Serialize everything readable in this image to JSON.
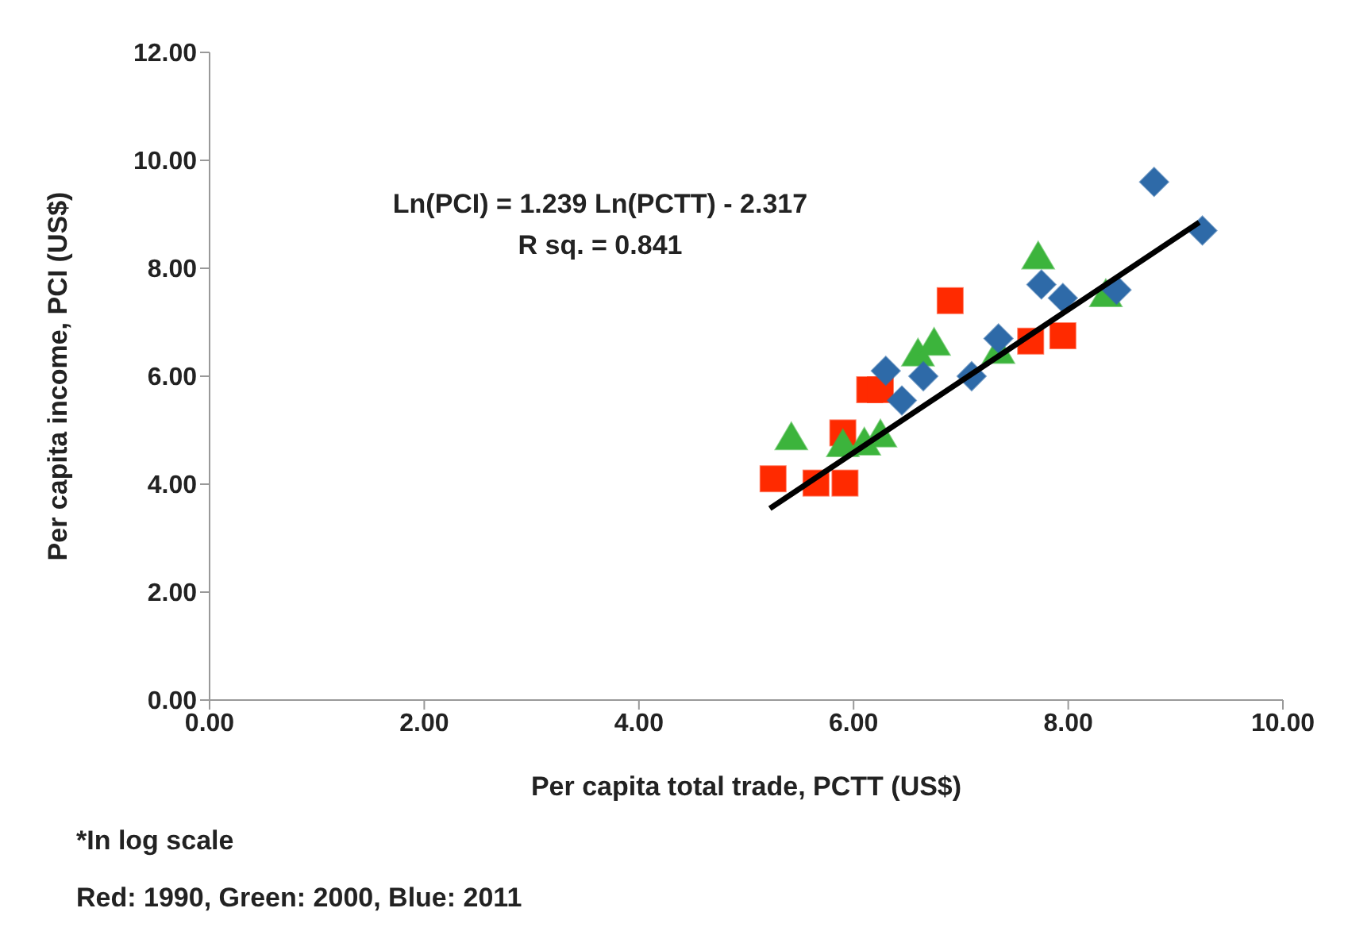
{
  "chart_data": {
    "type": "scatter",
    "xlabel": "Per capita total trade, PCTT (US$)",
    "ylabel": "Per capita income, PCI (US$)",
    "annotations": [
      "Ln(PCI) = 1.239 Ln(PCTT) - 2.317\nR sq. = 0.841",
      "*In log scale",
      "Red: 1990, Green: 2000, Blue: 2011"
    ],
    "xlim": [
      0,
      10
    ],
    "ylim": [
      0,
      12
    ],
    "xticks": [
      {
        "value": 0,
        "label": "0.00"
      },
      {
        "value": 2,
        "label": "2.00"
      },
      {
        "value": 4,
        "label": "4.00"
      },
      {
        "value": 6,
        "label": "6.00"
      },
      {
        "value": 8,
        "label": "8.00"
      },
      {
        "value": 10,
        "label": "10.00"
      }
    ],
    "yticks": [
      {
        "value": 0,
        "label": "0.00"
      },
      {
        "value": 2,
        "label": "2.00"
      },
      {
        "value": 4,
        "label": "4.00"
      },
      {
        "value": 6,
        "label": "6.00"
      },
      {
        "value": 8,
        "label": "8.00"
      },
      {
        "value": 10,
        "label": "10.00"
      },
      {
        "value": 12,
        "label": "12.00"
      }
    ],
    "grid": false,
    "legend": false,
    "series": [
      {
        "marker": "square",
        "color": "#ff2a00",
        "x": [
          5.25,
          5.65,
          5.92,
          5.9,
          6.15,
          6.25,
          6.9,
          7.65,
          7.95
        ],
        "values": [
          4.1,
          4.02,
          4.02,
          4.95,
          5.75,
          5.75,
          7.4,
          6.65,
          6.75
        ]
      },
      {
        "marker": "triangle",
        "color": "#3cb43c",
        "x": [
          5.42,
          5.9,
          6.1,
          6.25,
          6.6,
          6.75,
          7.35,
          7.72,
          8.35
        ],
        "values": [
          4.85,
          4.72,
          4.75,
          4.9,
          6.4,
          6.6,
          6.45,
          8.2,
          7.5
        ]
      },
      {
        "marker": "diamond",
        "color": "#2e6aa8",
        "x": [
          6.3,
          6.45,
          6.65,
          7.1,
          7.35,
          7.75,
          7.95,
          8.45,
          8.8,
          9.25
        ],
        "values": [
          6.1,
          5.55,
          6.0,
          6.0,
          6.7,
          7.7,
          7.45,
          7.6,
          9.6,
          8.7
        ]
      },
      {
        "type": "line",
        "color": "#000000",
        "x": [
          5.22,
          9.22
        ],
        "values": [
          3.55,
          8.85
        ]
      }
    ]
  }
}
